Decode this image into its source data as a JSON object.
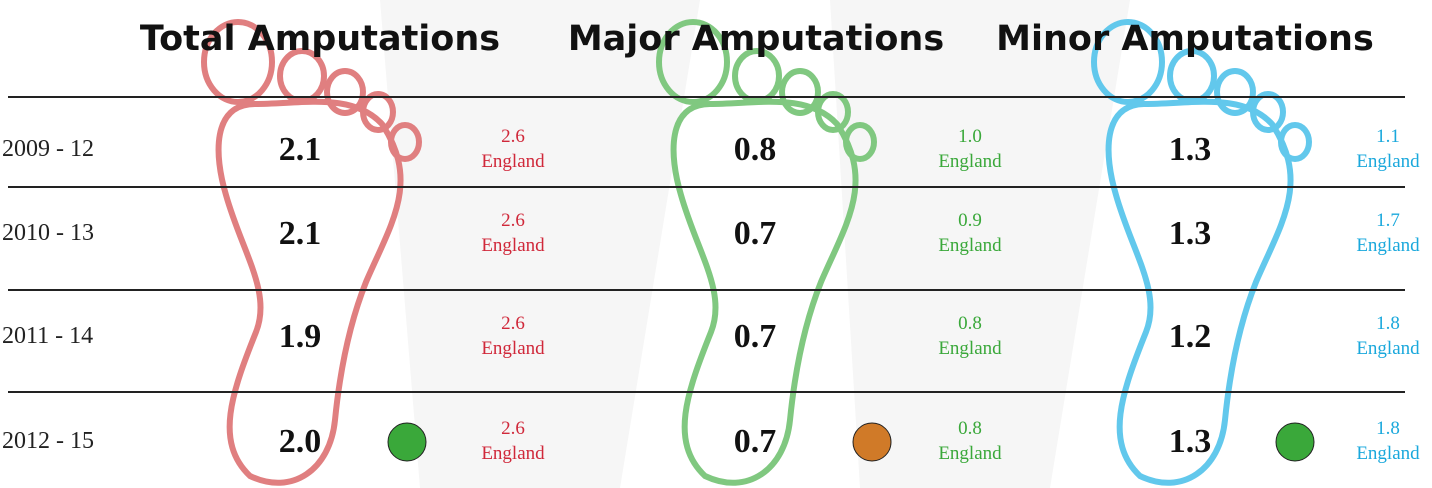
{
  "columns": [
    {
      "title": "Total Amputations",
      "color": "#d0283a",
      "outline": "#e07f80",
      "indicator_color": "#3aa83a"
    },
    {
      "title": "Major Amputations",
      "color": "#3aa83a",
      "outline": "#80c880",
      "indicator_color": "#d07a28"
    },
    {
      "title": "Minor Amputations",
      "color": "#1aa8dc",
      "outline": "#62c8ec",
      "indicator_color": "#3aa83a"
    }
  ],
  "england_label": "England",
  "rows": [
    {
      "period": "2009 - 12",
      "values": [
        "2.1",
        "0.8",
        "1.3"
      ],
      "england": [
        "2.6",
        "1.0",
        "1.1"
      ]
    },
    {
      "period": "2010 - 13",
      "values": [
        "2.1",
        "0.7",
        "1.3"
      ],
      "england": [
        "2.6",
        "0.9",
        "1.7"
      ]
    },
    {
      "period": "2011 - 14",
      "values": [
        "1.9",
        "0.7",
        "1.2"
      ],
      "england": [
        "2.6",
        "0.8",
        "1.8"
      ]
    },
    {
      "period": "2012 - 15",
      "values": [
        "2.0",
        "0.7",
        "1.3"
      ],
      "england": [
        "2.6",
        "0.8",
        "1.8"
      ]
    }
  ]
}
